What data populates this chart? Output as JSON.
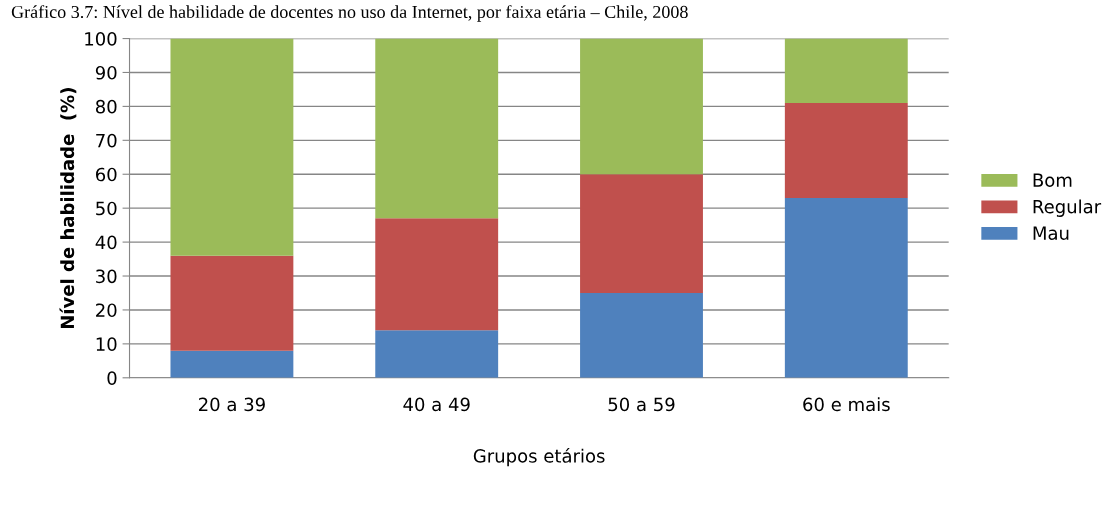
{
  "chart_data": {
    "type": "bar",
    "stacked": true,
    "title": "Gráfico 3.7: Nível de habilidade de docentes no uso da Internet, por faixa etária – Chile, 2008",
    "xlabel": "Grupos etários",
    "ylabel": "Nível de habilidade  (%)",
    "categories": [
      "20 a 39",
      "40 a 49",
      "50 a 59",
      "60 e mais"
    ],
    "series": [
      {
        "name": "Mau",
        "color": "#4f81bd",
        "values": [
          8,
          14,
          25,
          53
        ]
      },
      {
        "name": "Regular",
        "color": "#c0504d",
        "values": [
          28,
          33,
          35,
          28
        ]
      },
      {
        "name": "Bom",
        "color": "#9bbb59",
        "values": [
          64,
          53,
          40,
          19
        ]
      }
    ],
    "ylim": [
      0,
      100
    ],
    "yticks": [
      0,
      10,
      20,
      30,
      40,
      50,
      60,
      70,
      80,
      90,
      100
    ],
    "grid": "y",
    "legend": "right"
  }
}
